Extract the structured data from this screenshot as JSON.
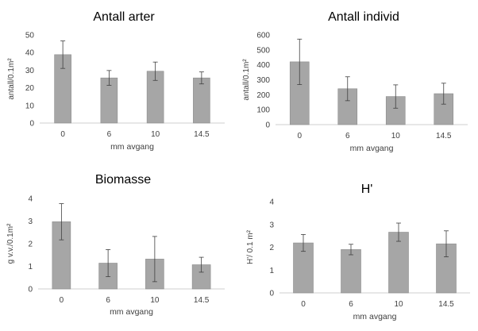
{
  "chart_data": [
    {
      "type": "bar",
      "title": "Antall arter",
      "xlabel": "mm avgang",
      "ylabel": "antall/0.1m²",
      "categories": [
        "0",
        "6",
        "10",
        "14.5"
      ],
      "values": [
        38.8,
        25.6,
        29.4,
        25.6
      ],
      "errors": [
        7.8,
        4.2,
        5.2,
        3.4
      ],
      "ylim": [
        0,
        50
      ],
      "yticks": [
        "0",
        "10",
        "20",
        "30",
        "40",
        "50"
      ],
      "grid": false
    },
    {
      "type": "bar",
      "title": "Antall individ",
      "xlabel": "mm avgang",
      "ylabel": "antall/0.1m²",
      "categories": [
        "0",
        "6",
        "10",
        "14.5"
      ],
      "values": [
        420,
        240,
        188,
        207
      ],
      "errors": [
        152,
        80,
        78,
        70
      ],
      "ylim": [
        0,
        600
      ],
      "yticks": [
        "0",
        "100",
        "200",
        "300",
        "400",
        "500",
        "600"
      ],
      "grid": false
    },
    {
      "type": "bar",
      "title": "Biomasse",
      "xlabel": "mm avgang",
      "ylabel": "g v.v./0.1m²",
      "categories": [
        "0",
        "6",
        "10",
        "14.5"
      ],
      "values": [
        2.97,
        1.14,
        1.32,
        1.07
      ],
      "errors": [
        0.8,
        0.6,
        1.0,
        0.33
      ],
      "ylim": [
        0,
        4
      ],
      "yticks": [
        "0",
        "1",
        "2",
        "3",
        "4"
      ],
      "grid": false
    },
    {
      "type": "bar",
      "title": "H'",
      "xlabel": "mm avgang",
      "ylabel": "H'/ 0.1 m²",
      "categories": [
        "0",
        "6",
        "10",
        "14.5"
      ],
      "values": [
        2.19,
        1.9,
        2.66,
        2.15
      ],
      "errors": [
        0.37,
        0.23,
        0.4,
        0.57
      ],
      "ylim": [
        0,
        4
      ],
      "yticks": [
        "0",
        "1",
        "2",
        "3",
        "4"
      ],
      "grid": false
    }
  ]
}
